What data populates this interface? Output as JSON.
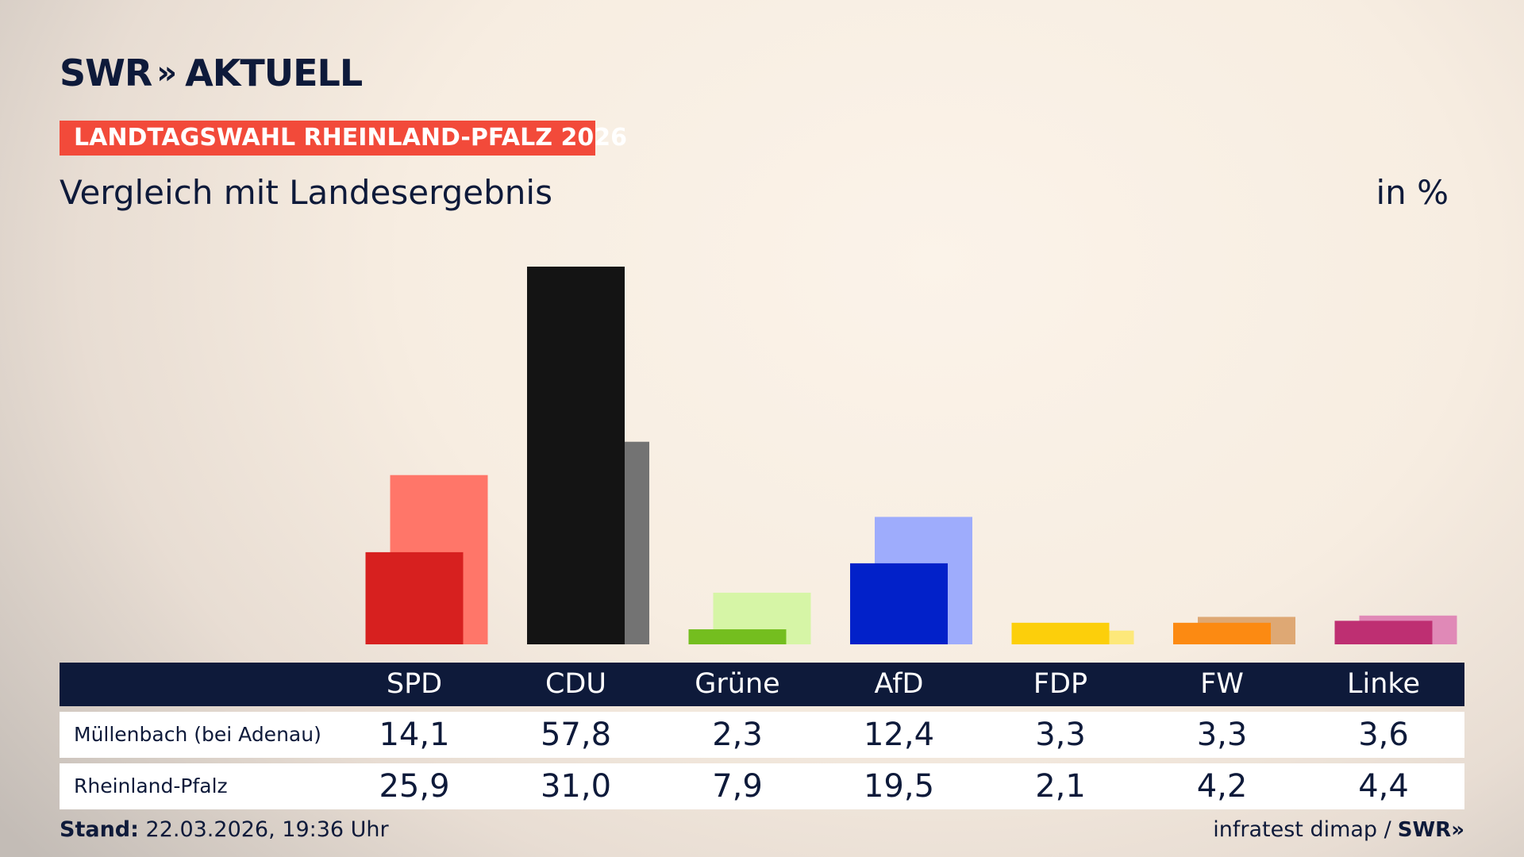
{
  "brand": {
    "name": "SWR",
    "chevrons": "»",
    "product": "AKTUELL"
  },
  "badge": "LANDTAGSWAHL RHEINLAND-PFALZ 2026",
  "subtitle": "Vergleich mit Landesergebnis",
  "unit": "in %",
  "chart_data": {
    "type": "bar",
    "title": "Vergleich mit Landesergebnis",
    "unit": "in %",
    "categories": [
      "SPD",
      "CDU",
      "Grüne",
      "AfD",
      "FDP",
      "FW",
      "Linke"
    ],
    "series": [
      {
        "name": "Müllenbach (bei Adenau)",
        "values": [
          14.1,
          57.8,
          2.3,
          12.4,
          3.3,
          3.3,
          3.6
        ]
      },
      {
        "name": "Rheinland-Pfalz",
        "values": [
          25.9,
          31.0,
          7.9,
          19.5,
          2.1,
          4.2,
          4.4
        ]
      }
    ],
    "colors_local": [
      "#d7201f",
      "#141414",
      "#74be1f",
      "#0221c9",
      "#fccf0b",
      "#fc8a12",
      "#be2f72"
    ],
    "colors_state": [
      "#ff7669",
      "#737373",
      "#d6f5a6",
      "#9eacfc",
      "#fde87a",
      "#dea874",
      "#e089b7"
    ],
    "display_values": {
      "local": [
        "14,1",
        "57,8",
        "2,3",
        "12,4",
        "3,3",
        "3,3",
        "3,6"
      ],
      "state": [
        "25,9",
        "31,0",
        "7,9",
        "19,5",
        "2,1",
        "4,2",
        "4,4"
      ]
    },
    "ylim": [
      0,
      57.8
    ]
  },
  "table": {
    "row_labels": [
      "Müllenbach (bei Adenau)",
      "Rheinland-Pfalz"
    ]
  },
  "footer": {
    "stand_label": "Stand:",
    "stand_value": "22.03.2026, 19:36 Uhr",
    "source": "infratest dimap /",
    "source_brand": "SWR»"
  }
}
